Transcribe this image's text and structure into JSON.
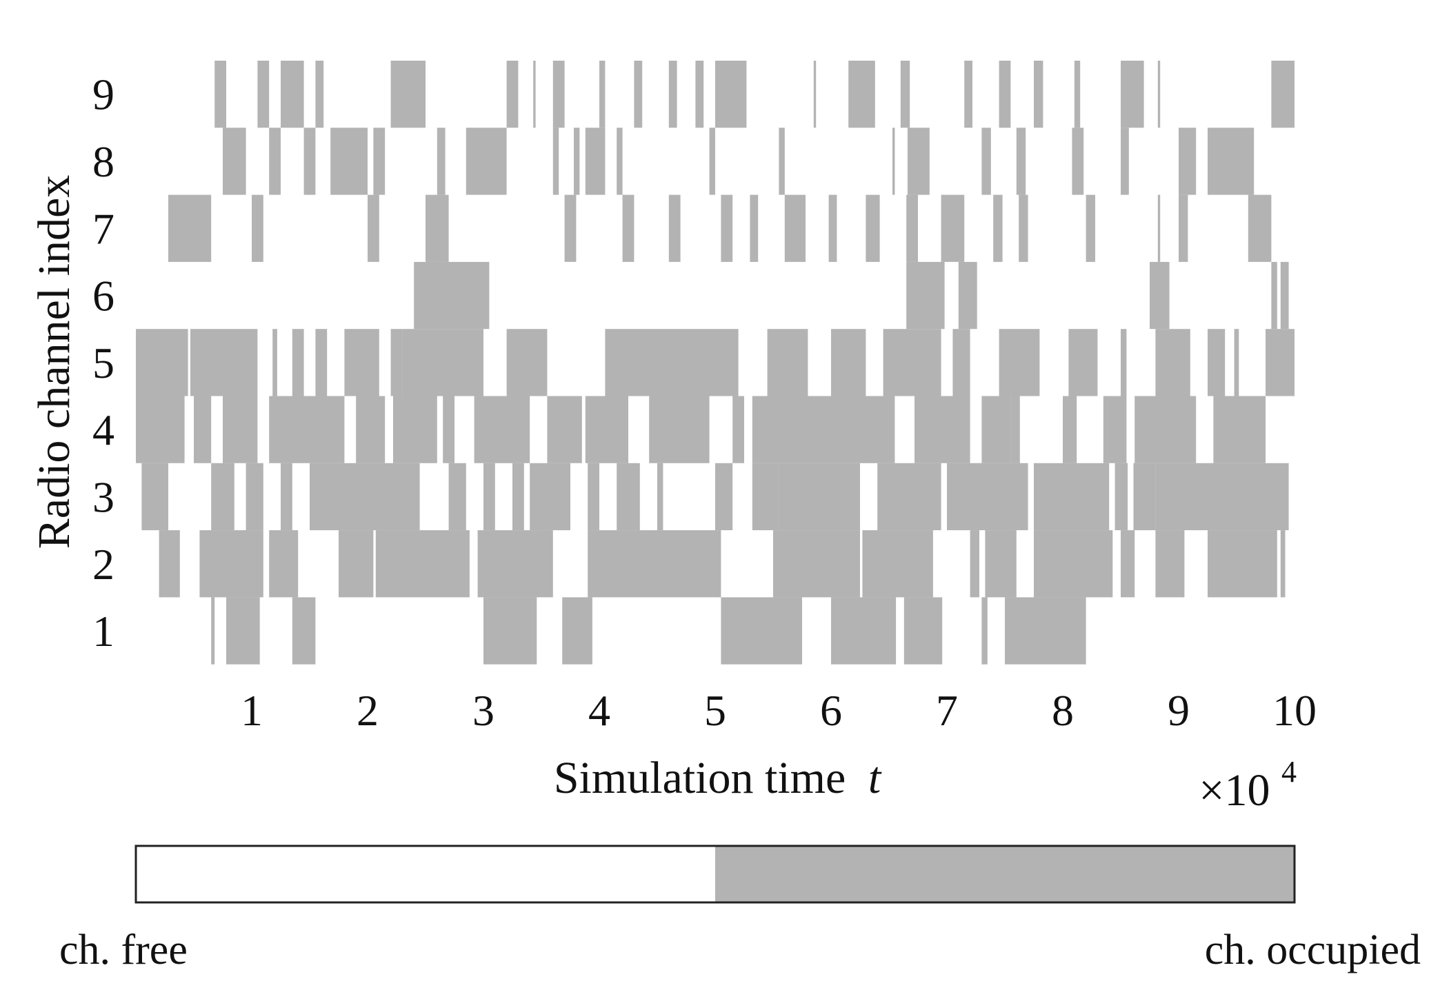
{
  "chart_data": {
    "type": "heatmap",
    "xlabel": "Simulation time",
    "xlabel_var": "t",
    "ylabel": "Radio channel index",
    "x_scale_label": "×10",
    "x_scale_exponent": "4",
    "xlim": [
      0,
      10
    ],
    "ylim": [
      0.5,
      9.5
    ],
    "x_ticks": [
      1,
      2,
      3,
      4,
      5,
      6,
      7,
      8,
      9,
      10
    ],
    "x_tick_labels": [
      "1",
      "2",
      "3",
      "4",
      "5",
      "6",
      "7",
      "8",
      "9",
      "10"
    ],
    "y_ticks": [
      1,
      2,
      3,
      4,
      5,
      6,
      7,
      8,
      9
    ],
    "y_tick_labels": [
      "1",
      "2",
      "3",
      "4",
      "5",
      "6",
      "7",
      "8",
      "9"
    ],
    "colors": {
      "free": "#ffffff",
      "occupied": "#b3b3b3",
      "text": "#111111",
      "frame": "#222222"
    },
    "legend": {
      "free_label": "ch. free",
      "occupied_label": "ch. occupied",
      "placement": "bottom"
    },
    "occupied_intervals": {
      "1": [
        [
          0.65,
          0.68
        ],
        [
          0.78,
          1.07
        ],
        [
          1.35,
          1.55
        ],
        [
          3.0,
          3.46
        ],
        [
          3.68,
          3.94
        ],
        [
          5.05,
          5.75
        ],
        [
          6.0,
          6.56
        ],
        [
          6.63,
          6.96
        ],
        [
          7.3,
          7.35
        ],
        [
          7.5,
          8.2
        ]
      ],
      "2": [
        [
          0.2,
          0.38
        ],
        [
          0.55,
          1.1
        ],
        [
          1.15,
          1.4
        ],
        [
          1.75,
          2.05
        ],
        [
          2.07,
          2.88
        ],
        [
          2.95,
          3.6
        ],
        [
          3.9,
          5.05
        ],
        [
          5.5,
          6.25
        ],
        [
          6.27,
          6.88
        ],
        [
          7.2,
          7.28
        ],
        [
          7.33,
          7.6
        ],
        [
          7.75,
          8.22
        ],
        [
          8.22,
          8.43
        ],
        [
          8.5,
          8.62
        ],
        [
          8.8,
          9.05
        ],
        [
          9.25,
          9.85
        ],
        [
          9.88,
          9.92
        ]
      ],
      "3": [
        [
          0.05,
          0.28
        ],
        [
          0.65,
          0.85
        ],
        [
          0.95,
          1.1
        ],
        [
          1.25,
          1.35
        ],
        [
          1.5,
          2.45
        ],
        [
          2.7,
          2.85
        ],
        [
          3.0,
          3.1
        ],
        [
          3.25,
          3.35
        ],
        [
          3.4,
          3.75
        ],
        [
          3.9,
          4.0
        ],
        [
          4.15,
          4.35
        ],
        [
          4.5,
          4.55
        ],
        [
          5.0,
          5.15
        ],
        [
          5.32,
          5.55
        ],
        [
          5.55,
          6.25
        ],
        [
          6.4,
          6.95
        ],
        [
          7.0,
          7.7
        ],
        [
          7.75,
          8.4
        ],
        [
          8.45,
          8.56
        ],
        [
          8.61,
          8.8
        ],
        [
          8.8,
          9.75
        ],
        [
          9.75,
          9.95
        ]
      ],
      "4": [
        [
          0.0,
          0.42
        ],
        [
          0.5,
          0.65
        ],
        [
          0.75,
          1.05
        ],
        [
          1.15,
          1.8
        ],
        [
          1.9,
          2.15
        ],
        [
          2.22,
          2.6
        ],
        [
          2.65,
          2.75
        ],
        [
          2.92,
          3.4
        ],
        [
          3.55,
          3.85
        ],
        [
          3.88,
          4.25
        ],
        [
          4.43,
          4.95
        ],
        [
          5.15,
          5.25
        ],
        [
          5.32,
          6.55
        ],
        [
          6.72,
          7.2
        ],
        [
          7.3,
          7.55
        ],
        [
          7.55,
          7.63
        ],
        [
          8.0,
          8.12
        ],
        [
          8.35,
          8.55
        ],
        [
          8.62,
          9.15
        ],
        [
          9.3,
          9.75
        ]
      ],
      "5": [
        [
          0.0,
          0.45
        ],
        [
          0.47,
          1.05
        ],
        [
          1.18,
          1.22
        ],
        [
          1.35,
          1.45
        ],
        [
          1.55,
          1.65
        ],
        [
          1.8,
          2.1
        ],
        [
          2.2,
          2.3
        ],
        [
          2.3,
          3.0
        ],
        [
          3.2,
          3.55
        ],
        [
          4.05,
          5.2
        ],
        [
          5.45,
          5.8
        ],
        [
          6.0,
          6.3
        ],
        [
          6.45,
          6.95
        ],
        [
          7.05,
          7.2
        ],
        [
          7.45,
          7.8
        ],
        [
          8.05,
          8.3
        ],
        [
          8.5,
          8.55
        ],
        [
          8.8,
          9.1
        ],
        [
          9.25,
          9.4
        ],
        [
          9.48,
          9.52
        ],
        [
          9.75,
          10.0
        ]
      ],
      "6": [
        [
          2.4,
          3.05
        ],
        [
          6.65,
          6.98
        ],
        [
          7.1,
          7.26
        ],
        [
          8.75,
          8.92
        ],
        [
          9.8,
          9.85
        ],
        [
          9.88,
          9.95
        ]
      ],
      "7": [
        [
          0.28,
          0.65
        ],
        [
          1.0,
          1.1
        ],
        [
          2.0,
          2.1
        ],
        [
          2.5,
          2.7
        ],
        [
          3.7,
          3.8
        ],
        [
          4.2,
          4.3
        ],
        [
          4.6,
          4.7
        ],
        [
          5.05,
          5.15
        ],
        [
          5.3,
          5.37
        ],
        [
          5.6,
          5.78
        ],
        [
          5.98,
          6.05
        ],
        [
          6.3,
          6.42
        ],
        [
          6.65,
          6.75
        ],
        [
          6.95,
          7.15
        ],
        [
          7.4,
          7.48
        ],
        [
          7.62,
          7.7
        ],
        [
          8.2,
          8.28
        ],
        [
          8.82,
          8.84
        ],
        [
          9.0,
          9.08
        ],
        [
          9.6,
          9.8
        ]
      ],
      "8": [
        [
          0.75,
          0.95
        ],
        [
          1.15,
          1.25
        ],
        [
          1.45,
          1.55
        ],
        [
          1.68,
          2.0
        ],
        [
          2.05,
          2.15
        ],
        [
          2.6,
          2.67
        ],
        [
          2.85,
          3.2
        ],
        [
          3.6,
          3.65
        ],
        [
          3.78,
          3.83
        ],
        [
          3.88,
          4.05
        ],
        [
          4.15,
          4.2
        ],
        [
          4.95,
          5.0
        ],
        [
          5.55,
          5.6
        ],
        [
          6.53,
          6.55
        ],
        [
          6.66,
          6.85
        ],
        [
          7.3,
          7.38
        ],
        [
          7.6,
          7.68
        ],
        [
          8.08,
          8.18
        ],
        [
          8.5,
          8.57
        ],
        [
          9.0,
          9.15
        ],
        [
          9.25,
          9.65
        ]
      ],
      "9": [
        [
          0.68,
          0.78
        ],
        [
          1.05,
          1.15
        ],
        [
          1.25,
          1.45
        ],
        [
          1.55,
          1.62
        ],
        [
          2.2,
          2.5
        ],
        [
          3.2,
          3.3
        ],
        [
          3.43,
          3.45
        ],
        [
          3.6,
          3.7
        ],
        [
          4.0,
          4.05
        ],
        [
          4.3,
          4.37
        ],
        [
          4.6,
          4.67
        ],
        [
          4.83,
          4.9
        ],
        [
          5.0,
          5.27
        ],
        [
          5.85,
          5.87
        ],
        [
          6.15,
          6.38
        ],
        [
          6.6,
          6.68
        ],
        [
          7.15,
          7.22
        ],
        [
          7.45,
          7.55
        ],
        [
          7.75,
          7.83
        ],
        [
          8.1,
          8.15
        ],
        [
          8.5,
          8.7
        ],
        [
          8.82,
          8.84
        ],
        [
          9.8,
          10.0
        ]
      ]
    }
  }
}
